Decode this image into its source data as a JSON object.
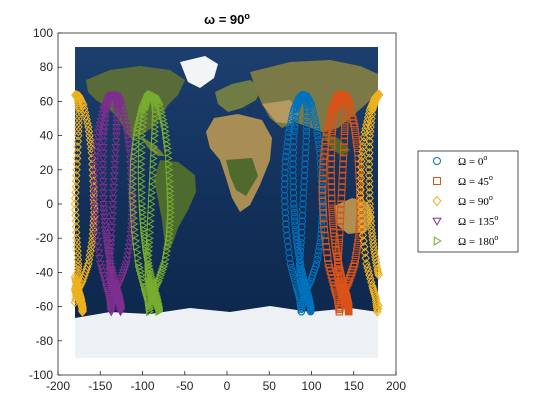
{
  "chart_data": {
    "type": "scatter",
    "title": {
      "main": "ω = 90",
      "sup": "o"
    },
    "xlabel": "",
    "ylabel": "",
    "xlim": [
      -200,
      200
    ],
    "ylim": [
      -100,
      100
    ],
    "xticks": [
      "-200",
      "-150",
      "-100",
      "-50",
      "0",
      "50",
      "100",
      "150",
      "200"
    ],
    "yticks": [
      "100",
      "80",
      "60",
      "40",
      "20",
      "0",
      "-20",
      "-40",
      "-60",
      "-80",
      "-100"
    ],
    "grid": false,
    "legend_position": "right",
    "background": "world-map-satellite",
    "series": [
      {
        "name": "Ω = 0",
        "sup": "o",
        "marker": "circle",
        "color": "#0072BD",
        "x": [
          88,
          86,
          82,
          75,
          70,
          68,
          69,
          73,
          79,
          85,
          89,
          93,
          95,
          94,
          92,
          90,
          88,
          86,
          87,
          90,
          93,
          96,
          98,
          99,
          99,
          99,
          97,
          94,
          91,
          88,
          84,
          81,
          79,
          78,
          79,
          82,
          86,
          90,
          95,
          100,
          106,
          110,
          112,
          113,
          111,
          106,
          99,
          92,
          88
        ],
        "y": [
          -63,
          -55,
          -48,
          -35,
          -15,
          5,
          25,
          42,
          55,
          62,
          64,
          63,
          55,
          40,
          20,
          0,
          -20,
          -35,
          -45,
          -50,
          -55,
          -57,
          -59,
          -61,
          -63,
          -60,
          -55,
          -50,
          -45,
          -38,
          -27,
          -15,
          0,
          20,
          40,
          55,
          61,
          64,
          63,
          58,
          45,
          30,
          10,
          -5,
          -20,
          -35,
          -45,
          -52,
          -63
        ]
      },
      {
        "name": "Ω = 45",
        "sup": "o",
        "marker": "square",
        "color": "#D95319",
        "x": [
          133,
          131,
          127,
          120,
          115,
          113,
          114,
          118,
          124,
          130,
          134,
          138,
          140,
          139,
          137,
          135,
          133,
          131,
          132,
          135,
          138,
          141,
          143,
          144,
          144,
          144,
          142,
          139,
          136,
          133,
          129,
          126,
          124,
          123,
          124,
          127,
          131,
          135,
          140,
          145,
          151,
          155,
          157,
          158,
          156,
          151,
          144,
          137,
          133
        ],
        "y": [
          -63,
          -55,
          -48,
          -35,
          -15,
          5,
          25,
          42,
          55,
          62,
          64,
          63,
          55,
          40,
          20,
          0,
          -20,
          -35,
          -45,
          -50,
          -55,
          -57,
          -59,
          -61,
          -63,
          -60,
          -55,
          -50,
          -45,
          -38,
          -27,
          -15,
          0,
          20,
          40,
          55,
          61,
          64,
          63,
          58,
          45,
          30,
          10,
          -5,
          -20,
          -35,
          -45,
          -52,
          -63
        ]
      },
      {
        "name": "Ω = 90",
        "sup": "o",
        "marker": "diamond",
        "color": "#EDB120",
        "x": [
          178,
          176,
          172,
          165,
          160,
          158,
          159,
          163,
          169,
          175,
          179,
          -177,
          -175,
          -176,
          -178,
          -180,
          -178,
          -176,
          -177,
          -180,
          -177,
          -174,
          -172,
          -171,
          -171,
          -171,
          -173,
          -176,
          -179,
          178,
          174,
          171,
          169,
          168,
          169,
          172,
          176,
          180,
          -175,
          -170,
          -164,
          -160,
          -158,
          -157,
          -159,
          -164,
          -171,
          -178,
          178
        ],
        "y": [
          -63,
          -55,
          -48,
          -35,
          -15,
          5,
          25,
          42,
          55,
          62,
          64,
          63,
          55,
          40,
          20,
          0,
          -20,
          -35,
          -45,
          -50,
          -55,
          -57,
          -59,
          -61,
          -63,
          -60,
          -55,
          -50,
          -45,
          -38,
          -27,
          -15,
          0,
          20,
          40,
          55,
          61,
          64,
          63,
          58,
          45,
          30,
          10,
          -5,
          -20,
          -35,
          -45,
          -52,
          -63
        ]
      },
      {
        "name": "Ω = 135",
        "sup": "o",
        "marker": "triangle-down",
        "color": "#7E2F8E",
        "x": [
          -137,
          -139,
          -143,
          -150,
          -155,
          -157,
          -156,
          -152,
          -146,
          -140,
          -136,
          -132,
          -130,
          -131,
          -133,
          -135,
          -137,
          -139,
          -138,
          -135,
          -132,
          -129,
          -127,
          -126,
          -126,
          -126,
          -128,
          -131,
          -134,
          -137,
          -141,
          -144,
          -146,
          -147,
          -146,
          -143,
          -139,
          -135,
          -130,
          -125,
          -119,
          -115,
          -113,
          -112,
          -114,
          -119,
          -126,
          -133,
          -137
        ],
        "y": [
          -63,
          -55,
          -48,
          -35,
          -15,
          5,
          25,
          42,
          55,
          62,
          64,
          63,
          55,
          40,
          20,
          0,
          -20,
          -35,
          -45,
          -50,
          -55,
          -57,
          -59,
          -61,
          -63,
          -60,
          -55,
          -50,
          -45,
          -38,
          -27,
          -15,
          0,
          20,
          40,
          55,
          61,
          64,
          63,
          58,
          45,
          30,
          10,
          -5,
          -20,
          -35,
          -45,
          -52,
          -63
        ]
      },
      {
        "name": "Ω = 180",
        "sup": "o",
        "marker": "triangle-right",
        "color": "#77AC30",
        "x": [
          -92,
          -94,
          -98,
          -105,
          -110,
          -112,
          -111,
          -107,
          -101,
          -95,
          -91,
          -87,
          -85,
          -86,
          -88,
          -90,
          -92,
          -94,
          -93,
          -90,
          -87,
          -84,
          -82,
          -81,
          -81,
          -81,
          -83,
          -86,
          -89,
          -92,
          -96,
          -99,
          -101,
          -102,
          -101,
          -98,
          -94,
          -90,
          -85,
          -80,
          -74,
          -70,
          -68,
          -67,
          -69,
          -74,
          -81,
          -88,
          -92
        ],
        "y": [
          -63,
          -55,
          -48,
          -35,
          -15,
          5,
          25,
          42,
          55,
          62,
          64,
          63,
          55,
          40,
          20,
          0,
          -20,
          -35,
          -45,
          -50,
          -55,
          -57,
          -59,
          -61,
          -63,
          -60,
          -55,
          -50,
          -45,
          -38,
          -27,
          -15,
          0,
          20,
          40,
          55,
          61,
          64,
          63,
          58,
          45,
          30,
          10,
          -5,
          -20,
          -35,
          -45,
          -52,
          -63
        ]
      }
    ]
  }
}
